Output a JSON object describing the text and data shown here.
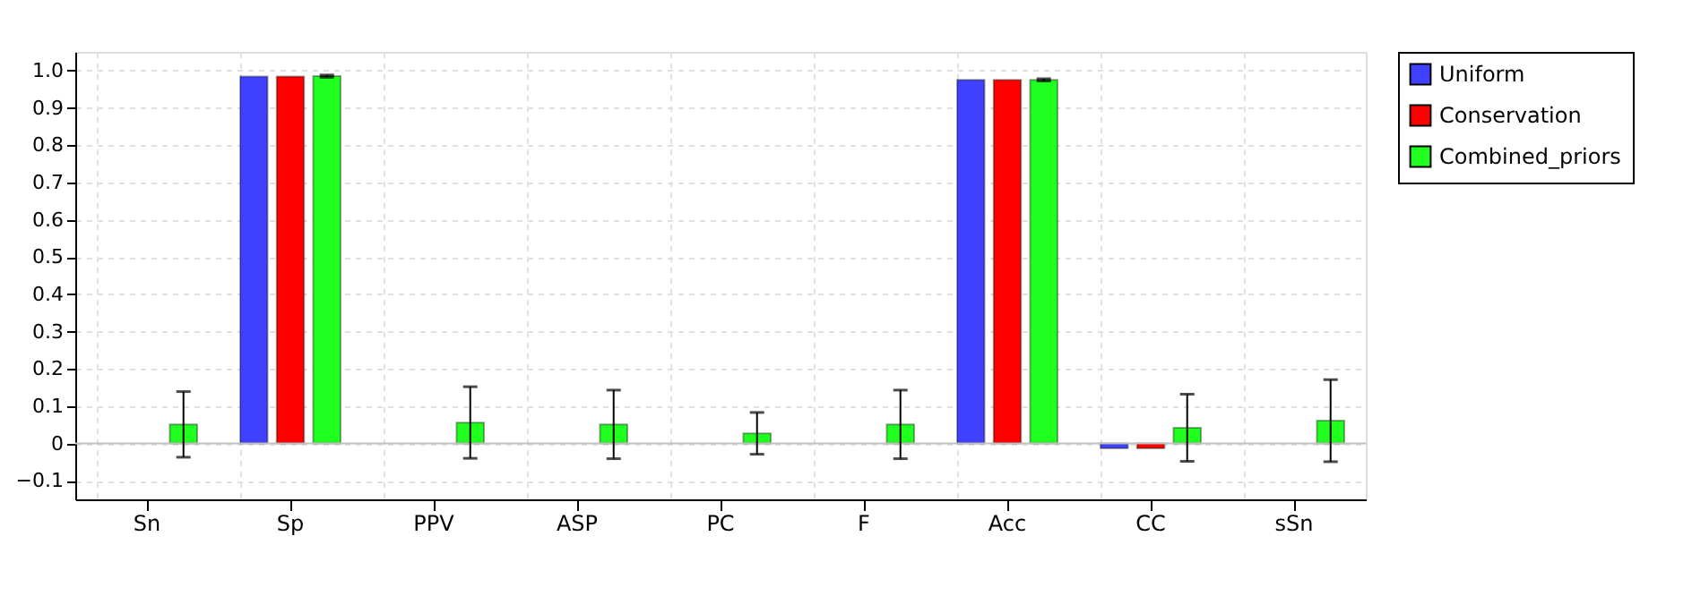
{
  "chart_data": {
    "type": "bar",
    "categories": [
      "Sn",
      "Sp",
      "PPV",
      "ASP",
      "PC",
      "F",
      "Acc",
      "CC",
      "sSn"
    ],
    "series": [
      {
        "name": "Uniform",
        "color": "#4040ff",
        "values": [
          null,
          0.984,
          null,
          null,
          null,
          null,
          0.975,
          -0.013,
          null
        ]
      },
      {
        "name": "Conservation",
        "color": "#ff0000",
        "values": [
          null,
          0.984,
          null,
          null,
          null,
          null,
          0.975,
          -0.013,
          null
        ]
      },
      {
        "name": "Combined_priors",
        "color": "#20ff20",
        "values": [
          0.051,
          0.985,
          0.056,
          0.051,
          0.027,
          0.051,
          0.975,
          0.042,
          0.061
        ],
        "errors": [
          0.088,
          0.003,
          0.096,
          0.092,
          0.056,
          0.092,
          0.003,
          0.09,
          0.11
        ]
      }
    ],
    "ylim": [
      -0.15,
      1.05
    ],
    "yticks": [
      -0.1,
      0,
      0.1,
      0.2,
      0.3,
      0.4,
      0.5,
      0.6,
      0.7,
      0.8,
      0.9,
      {
        "value": 1,
        "label": "1.0"
      }
    ],
    "ref_lines": [
      {
        "axis": "y",
        "value": 0,
        "color": "#c0c0c0"
      }
    ],
    "grid": true,
    "legend": "top right"
  }
}
